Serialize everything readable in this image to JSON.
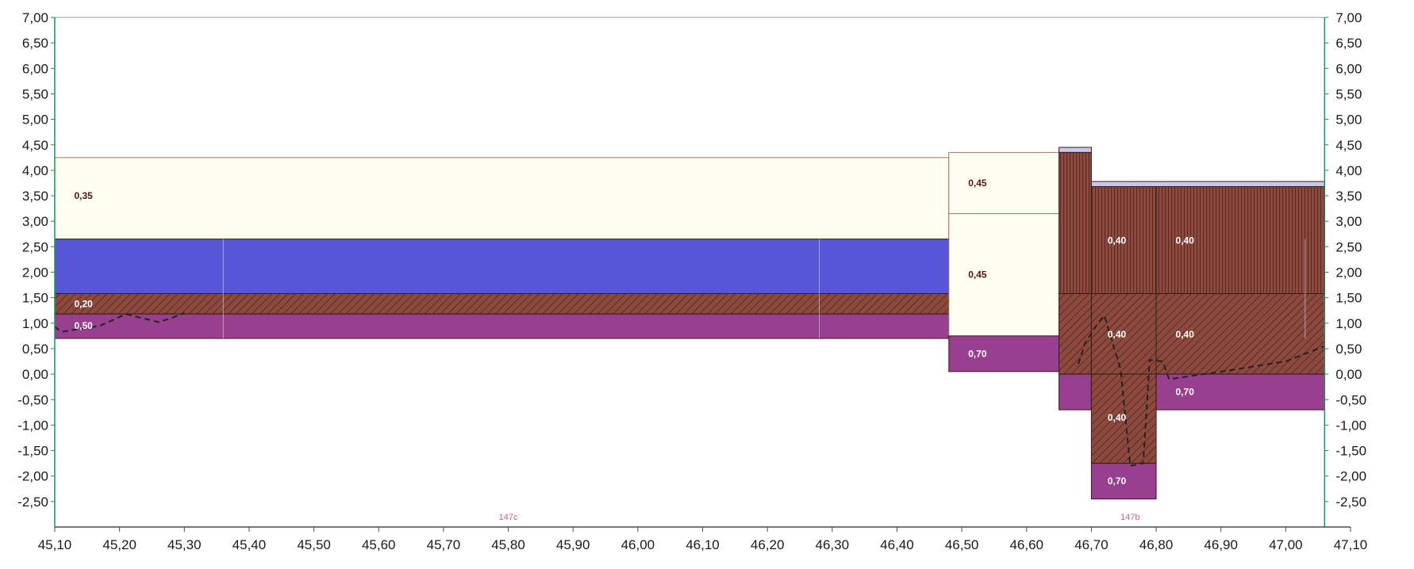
{
  "chart_data": {
    "type": "area",
    "title": "",
    "xlabel": "",
    "ylabel": "",
    "xlim": [
      45.1,
      47.1
    ],
    "ylim": [
      -3.0,
      7.0
    ],
    "grid": false,
    "x_ticks": [
      "45,10",
      "45,20",
      "45,30",
      "45,40",
      "45,50",
      "45,60",
      "45,70",
      "45,80",
      "45,90",
      "46,00",
      "46,10",
      "46,20",
      "46,30",
      "46,40",
      "46,50",
      "46,60",
      "46,70",
      "46,80",
      "46,90",
      "47,00",
      "47,10"
    ],
    "x_tick_values": [
      45.1,
      45.2,
      45.3,
      45.4,
      45.5,
      45.6,
      45.7,
      45.8,
      45.9,
      46.0,
      46.1,
      46.2,
      46.3,
      46.4,
      46.5,
      46.6,
      46.7,
      46.8,
      46.9,
      47.0,
      47.1
    ],
    "y_ticks": [
      "7,00",
      "6,50",
      "6,00",
      "5,50",
      "5,00",
      "4,50",
      "4,00",
      "3,50",
      "3,00",
      "2,50",
      "2,00",
      "1,50",
      "1,00",
      "0,50",
      "0,00",
      "-0,50",
      "-1,00",
      "-1,50",
      "-2,00",
      "-2,50"
    ],
    "y_tick_values": [
      7.0,
      6.5,
      6.0,
      5.5,
      5.0,
      4.5,
      4.0,
      3.5,
      3.0,
      2.5,
      2.0,
      1.5,
      1.0,
      0.5,
      0.0,
      -0.5,
      -1.0,
      -1.5,
      -2.0,
      -2.5
    ],
    "plot_x_end": 47.06,
    "layers": [
      {
        "x0": 45.1,
        "x1": 46.48,
        "y0": 2.65,
        "y1": 4.25,
        "fill": "cream",
        "label": "0,35",
        "label_at": [
          45.13,
          3.5
        ]
      },
      {
        "x0": 45.1,
        "x1": 46.48,
        "y0": 1.58,
        "y1": 2.65,
        "fill": "blue",
        "label": "",
        "label_at": null
      },
      {
        "x0": 45.1,
        "x1": 46.48,
        "y0": 1.18,
        "y1": 1.58,
        "fill": "brown-hatch",
        "label": "0,20",
        "label_at": [
          45.13,
          1.38
        ]
      },
      {
        "x0": 45.1,
        "x1": 46.48,
        "y0": 0.7,
        "y1": 1.18,
        "fill": "purple",
        "label": "0,50",
        "label_at": [
          45.13,
          0.95
        ]
      },
      {
        "x0": 46.48,
        "x1": 46.65,
        "y0": 3.15,
        "y1": 4.35,
        "fill": "cream",
        "label": "0,45",
        "label_at": [
          46.51,
          3.75
        ]
      },
      {
        "x0": 46.48,
        "x1": 46.65,
        "y0": 0.75,
        "y1": 3.15,
        "fill": "cream",
        "label": "0,45",
        "label_at": [
          46.51,
          1.95
        ]
      },
      {
        "x0": 46.48,
        "x1": 46.65,
        "y0": 0.05,
        "y1": 0.75,
        "fill": "purple",
        "label": "0,70",
        "label_at": [
          46.51,
          0.4
        ]
      },
      {
        "x0": 46.65,
        "x1": 46.7,
        "y0": 4.35,
        "y1": 4.45,
        "fill": "lavender",
        "label": "",
        "label_at": null
      },
      {
        "x0": 46.65,
        "x1": 46.7,
        "y0": 1.58,
        "y1": 4.35,
        "fill": "brown-vert",
        "label": "",
        "label_at": null
      },
      {
        "x0": 46.7,
        "x1": 47.06,
        "y0": 3.68,
        "y1": 3.78,
        "fill": "lavender",
        "label": "",
        "label_at": null
      },
      {
        "x0": 46.7,
        "x1": 46.8,
        "y0": 1.58,
        "y1": 3.68,
        "fill": "brown-vert",
        "label": "0,40",
        "label_at": [
          46.725,
          2.62
        ]
      },
      {
        "x0": 46.8,
        "x1": 47.06,
        "y0": 1.58,
        "y1": 3.68,
        "fill": "brown-vert",
        "label": "0,40",
        "label_at": [
          46.83,
          2.62
        ]
      },
      {
        "x0": 46.65,
        "x1": 46.7,
        "y0": 0.0,
        "y1": 1.58,
        "fill": "brown-hatch",
        "label": "",
        "label_at": null
      },
      {
        "x0": 46.7,
        "x1": 46.8,
        "y0": 0.0,
        "y1": 1.58,
        "fill": "brown-hatch",
        "label": "0,40",
        "label_at": [
          46.725,
          0.78
        ]
      },
      {
        "x0": 46.8,
        "x1": 47.06,
        "y0": 0.0,
        "y1": 1.58,
        "fill": "brown-hatch",
        "label": "0,40",
        "label_at": [
          46.83,
          0.78
        ]
      },
      {
        "x0": 46.65,
        "x1": 46.7,
        "y0": -0.7,
        "y1": 0.0,
        "fill": "purple",
        "label": "",
        "label_at": null
      },
      {
        "x0": 46.8,
        "x1": 47.06,
        "y0": -0.7,
        "y1": 0.0,
        "fill": "purple",
        "label": "0,70",
        "label_at": [
          46.83,
          -0.35
        ]
      },
      {
        "x0": 46.7,
        "x1": 46.8,
        "y0": -1.75,
        "y1": 0.0,
        "fill": "brown-hatch",
        "label": "0,40",
        "label_at": [
          46.725,
          -0.85
        ]
      },
      {
        "x0": 46.7,
        "x1": 46.8,
        "y0": -2.45,
        "y1": -1.75,
        "fill": "purple",
        "label": "0,70",
        "label_at": [
          46.725,
          -2.1
        ]
      }
    ],
    "dividers": [
      45.36,
      46.28,
      47.03
    ],
    "dashed_line": {
      "x": [
        45.1,
        45.11,
        45.17,
        45.21,
        45.26,
        45.28,
        45.3
      ],
      "y": [
        0.93,
        0.83,
        0.95,
        1.18,
        1.02,
        1.1,
        1.2
      ]
    },
    "dashed_line_2": {
      "x": [
        46.68,
        46.69,
        46.71,
        46.72,
        46.745,
        46.76,
        46.78,
        46.79,
        46.81,
        46.82,
        46.9,
        47.0,
        47.06
      ],
      "y": [
        0.2,
        0.6,
        1.0,
        1.15,
        0.1,
        -1.8,
        -1.75,
        0.28,
        0.25,
        -0.1,
        0.05,
        0.25,
        0.55
      ]
    },
    "section_labels": [
      {
        "text": "147c",
        "x": 45.8,
        "y": -2.8
      },
      {
        "text": "147b",
        "x": 46.76,
        "y": -2.8
      }
    ],
    "colors": {
      "cream": "#fffef0",
      "cream_line": "#b0705a",
      "blue": "#5656d6",
      "purple": "#993f8f",
      "brown": "#8c4a3e",
      "lavender": "#c8c8f0",
      "axis": "#1e8c6a",
      "dashed": "#222222",
      "label_dark": "#4a1a10",
      "label_light": "#ffffff"
    }
  }
}
